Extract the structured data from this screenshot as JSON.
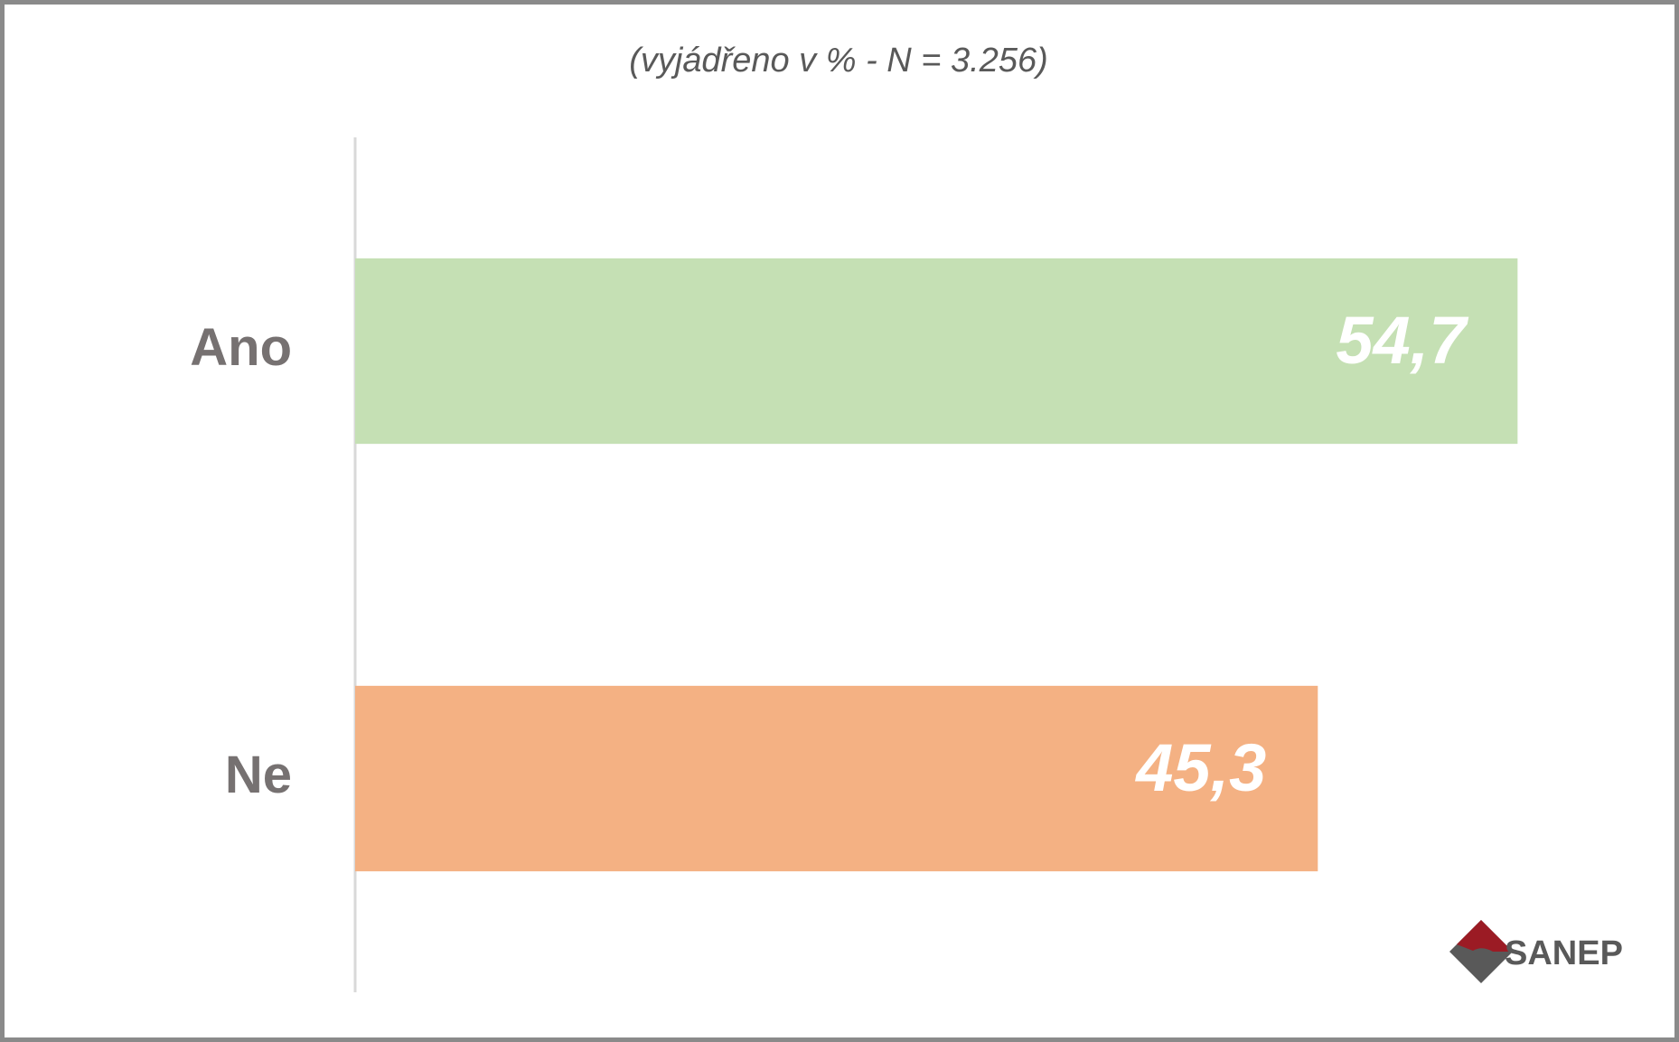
{
  "chart_data": {
    "type": "hbar",
    "subtitle": "(vyjádřeno v % - N = 3.256)",
    "categories": [
      "Ano",
      "Ne"
    ],
    "values": [
      54.7,
      45.3
    ],
    "value_labels": [
      "54,7",
      "45,3"
    ],
    "colors": [
      "#c5e0b4",
      "#f4b183"
    ],
    "xlim": [
      0,
      60
    ],
    "logo_text": "SANEP"
  }
}
